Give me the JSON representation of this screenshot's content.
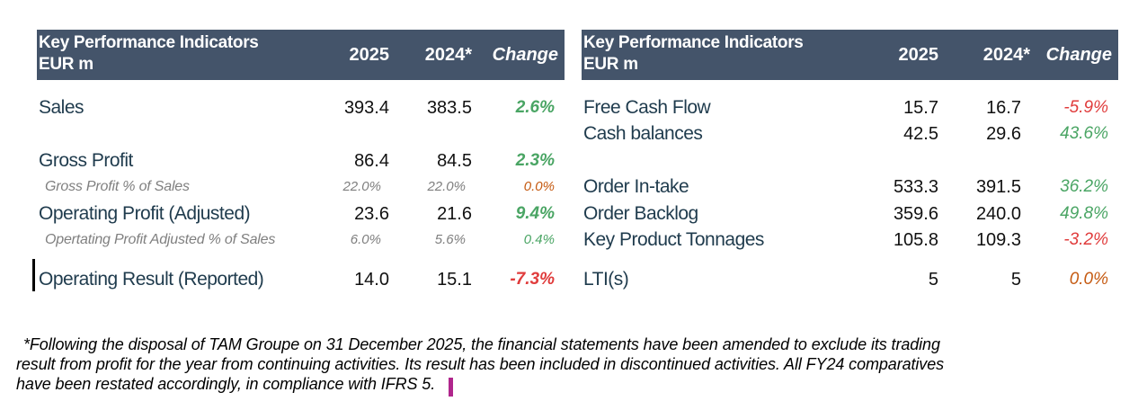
{
  "colors": {
    "header_bg": "#44546a",
    "positive": "#4aa564",
    "negative": "#e03c3c",
    "neutral": "#c55a11"
  },
  "left_table": {
    "header": {
      "title_line1": "Key Performance Indicators",
      "title_line2": "EUR m",
      "col_2025": "2025",
      "col_2024": "2024*",
      "col_change": "Change"
    },
    "rows": [
      {
        "label": "Sales",
        "v2025": "393.4",
        "v2024": "383.5",
        "change": "2.6%"
      },
      {
        "label": "Gross Profit",
        "v2025": "86.4",
        "v2024": "84.5",
        "change": "2.3%"
      },
      {
        "label": "Gross Profit % of Sales",
        "v2025": "22.0%",
        "v2024": "22.0%",
        "change": "0.0%"
      },
      {
        "label": "Operating Profit (Adjusted)",
        "v2025": "23.6",
        "v2024": "21.6",
        "change": "9.4%"
      },
      {
        "label": "Opertating Profit  Adjusted % of Sales",
        "v2025": "6.0%",
        "v2024": "5.6%",
        "change": "0.4%"
      },
      {
        "label": "Operating Result (Reported)",
        "v2025": "14.0",
        "v2024": "15.1",
        "change": "-7.3%"
      }
    ]
  },
  "right_table": {
    "header": {
      "title_line1": "Key Performance Indicators",
      "title_line2": "EUR m",
      "col_2025": "2025",
      "col_2024": "2024*",
      "col_change": "Change"
    },
    "rows": [
      {
        "label": "Free Cash Flow",
        "v2025": "15.7",
        "v2024": "16.7",
        "change": "-5.9%"
      },
      {
        "label": "Cash balances",
        "v2025": "42.5",
        "v2024": "29.6",
        "change": "43.6%"
      },
      {
        "label": "Order In-take",
        "v2025": "533.3",
        "v2024": "391.5",
        "change": "36.2%"
      },
      {
        "label": "Order Backlog",
        "v2025": "359.6",
        "v2024": "240.0",
        "change": "49.8%"
      },
      {
        "label": "Key Product Tonnages",
        "v2025": "105.8",
        "v2024": "109.3",
        "change": "-3.2%"
      },
      {
        "label": "LTI(s)",
        "v2025": "5",
        "v2024": "5",
        "change": "0.0%"
      }
    ]
  },
  "footnote": {
    "line1": "*Following the disposal of TAM Groupe on 31 December 2025, the financial statements have been amended to exclude its trading",
    "line2": "result from profit for the year from continuing activities. Its result has been included in discontinued activities. All FY24 comparatives",
    "line3": "have been restated accordingly, in compliance with IFRS 5."
  }
}
